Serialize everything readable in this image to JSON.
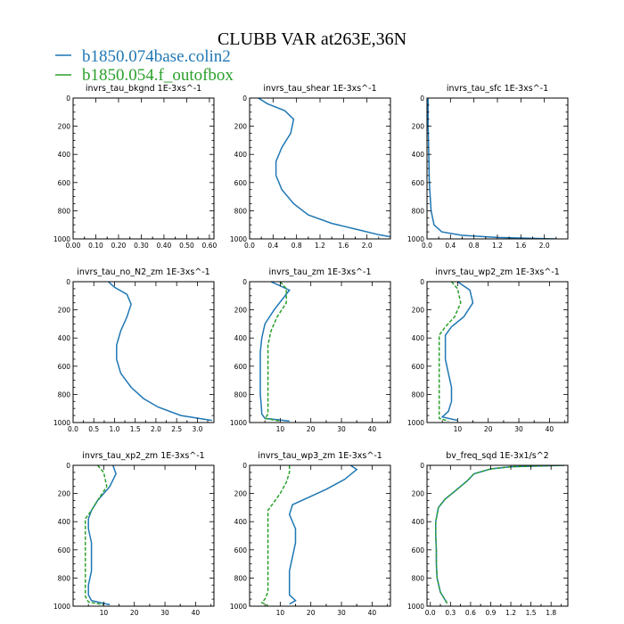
{
  "figure": {
    "title": "CLUBB VAR at263E,36N",
    "legend": [
      {
        "label": "b1850.074base.colin2",
        "color": "#1f77b4"
      },
      {
        "label": "b1850.054.f_outofbox",
        "color": "#2ca02c"
      }
    ]
  },
  "chart_data": [
    {
      "type": "line",
      "title": "invrs_tau_bkgnd   1E-3xs^-1",
      "xlim": [
        0,
        0.62
      ],
      "ylim": [
        1000,
        0
      ],
      "xticks": [
        "0.00",
        "0.10",
        "0.20",
        "0.30",
        "0.40",
        "0.50",
        "0.60"
      ],
      "xtick_values": [
        0,
        0.1,
        0.2,
        0.3,
        0.4,
        0.5,
        0.6
      ],
      "yticks": [
        "0",
        "200",
        "400",
        "600",
        "800",
        "1000"
      ],
      "series": []
    },
    {
      "type": "line",
      "title": "invrs_tau_shear   1E-3xs^-1",
      "xlim": [
        0,
        2.4
      ],
      "ylim": [
        1000,
        0
      ],
      "xticks": [
        "0.0",
        "0.4",
        "0.8",
        "1.2",
        "1.6",
        "2.0"
      ],
      "xtick_values": [
        0,
        0.4,
        0.8,
        1.2,
        1.6,
        2.0
      ],
      "yticks": [
        "0",
        "200",
        "400",
        "600",
        "800",
        "1000"
      ],
      "series": [
        {
          "color": "#1f77b4",
          "x": [
            0.15,
            0.3,
            0.6,
            0.75,
            0.7,
            0.55,
            0.45,
            0.45,
            0.55,
            0.75,
            1.0,
            1.4,
            1.9,
            2.2,
            2.4
          ],
          "y": [
            0,
            40,
            90,
            150,
            250,
            350,
            450,
            550,
            650,
            750,
            830,
            890,
            940,
            970,
            985
          ]
        }
      ]
    },
    {
      "type": "line",
      "title": "invrs_tau_sfc   1E-3xs^-1",
      "xlim": [
        0,
        2.4
      ],
      "ylim": [
        1000,
        0
      ],
      "xticks": [
        "0.0",
        "0.4",
        "0.8",
        "1.2",
        "1.6",
        "2.0"
      ],
      "xtick_values": [
        0,
        0.4,
        0.8,
        1.2,
        1.6,
        2.0
      ],
      "yticks": [
        "0",
        "200",
        "400",
        "600",
        "800",
        "1000"
      ],
      "series": [
        {
          "color": "#1f77b4",
          "x": [
            0.02,
            0.02,
            0.03,
            0.04,
            0.07,
            0.12,
            0.25,
            0.6,
            1.2,
            2.2
          ],
          "y": [
            0,
            200,
            400,
            600,
            800,
            900,
            950,
            975,
            990,
            1000
          ]
        }
      ]
    },
    {
      "type": "line",
      "title": "invrs_tau_no_N2_zm   1E-3xs^-1",
      "xlim": [
        0,
        3.4
      ],
      "ylim": [
        1000,
        0
      ],
      "xticks": [
        "0.0",
        "0.5",
        "1.0",
        "1.5",
        "2.0",
        "2.5",
        "3.0"
      ],
      "xtick_values": [
        0,
        0.5,
        1,
        1.5,
        2,
        2.5,
        3
      ],
      "yticks": [
        "0",
        "200",
        "400",
        "600",
        "800",
        "1000"
      ],
      "series": [
        {
          "color": "#1f77b4",
          "x": [
            0.85,
            1.0,
            1.3,
            1.4,
            1.3,
            1.15,
            1.05,
            1.05,
            1.15,
            1.4,
            1.7,
            2.05,
            2.6,
            3.35
          ],
          "y": [
            0,
            40,
            90,
            160,
            250,
            350,
            450,
            550,
            650,
            750,
            830,
            890,
            950,
            985
          ]
        }
      ]
    },
    {
      "type": "line",
      "title": "invrs_tau_zm   1E-3xs^-1",
      "xlim": [
        0,
        46
      ],
      "ylim": [
        1000,
        0
      ],
      "xticks": [
        "10",
        "20",
        "30",
        "40"
      ],
      "xtick_values": [
        10,
        20,
        30,
        40
      ],
      "yticks": [
        "0",
        "200",
        "400",
        "600",
        "800",
        "1000"
      ],
      "series": [
        {
          "color": "#1f77b4",
          "x": [
            7,
            13,
            8,
            5,
            4,
            3.5,
            3.5,
            3.5,
            3.5,
            3.8,
            4,
            5,
            13
          ],
          "y": [
            0,
            60,
            200,
            300,
            400,
            500,
            600,
            700,
            800,
            880,
            940,
            970,
            990
          ]
        },
        {
          "color": "#2ca02c",
          "dash": "4 2",
          "x": [
            10,
            12,
            12,
            9,
            7,
            6,
            6,
            6,
            6,
            6,
            6,
            5,
            10
          ],
          "y": [
            0,
            50,
            150,
            250,
            350,
            450,
            550,
            650,
            750,
            850,
            940,
            970,
            990
          ]
        }
      ]
    },
    {
      "type": "line",
      "title": "invrs_tau_wp2_zm   1E-3xs^-1",
      "xlim": [
        0,
        46
      ],
      "ylim": [
        1000,
        0
      ],
      "xticks": [
        "10",
        "20",
        "30",
        "40"
      ],
      "xtick_values": [
        10,
        20,
        30,
        40
      ],
      "yticks": [
        "0",
        "200",
        "400",
        "600",
        "800",
        "1000"
      ],
      "series": [
        {
          "color": "#1f77b4",
          "x": [
            10,
            14,
            15,
            12,
            8,
            6,
            6,
            6,
            7,
            8,
            8,
            7,
            5,
            10
          ],
          "y": [
            0,
            60,
            150,
            250,
            320,
            380,
            450,
            550,
            650,
            750,
            850,
            920,
            960,
            985
          ]
        },
        {
          "color": "#2ca02c",
          "dash": "4 2",
          "x": [
            8,
            10,
            11,
            9,
            6,
            4,
            4,
            4,
            4,
            4,
            4,
            4,
            4,
            7
          ],
          "y": [
            0,
            50,
            150,
            250,
            320,
            380,
            450,
            550,
            650,
            750,
            850,
            930,
            970,
            990
          ]
        }
      ]
    },
    {
      "type": "line",
      "title": "invrs_tau_xp2_zm   1E-3xs^-1",
      "xlim": [
        0,
        46
      ],
      "ylim": [
        1000,
        0
      ],
      "xticks": [
        "10",
        "20",
        "30",
        "40"
      ],
      "xtick_values": [
        10,
        20,
        30,
        40
      ],
      "yticks": [
        "0",
        "200",
        "400",
        "600",
        "800",
        "1000"
      ],
      "series": [
        {
          "color": "#1f77b4",
          "x": [
            13,
            14,
            12,
            8,
            6,
            5,
            5,
            6,
            6,
            6,
            5,
            5,
            6,
            12
          ],
          "y": [
            0,
            60,
            150,
            250,
            320,
            380,
            450,
            550,
            650,
            750,
            850,
            920,
            960,
            990
          ]
        },
        {
          "color": "#2ca02c",
          "dash": "4 2",
          "x": [
            8,
            10,
            11,
            8,
            6,
            4,
            4,
            4,
            4,
            4,
            4,
            4,
            5,
            10
          ],
          "y": [
            0,
            50,
            150,
            250,
            320,
            380,
            450,
            550,
            650,
            750,
            850,
            930,
            970,
            990
          ]
        }
      ]
    },
    {
      "type": "line",
      "title": "invrs_tau_wp3_zm   1E-3xs^-1",
      "xlim": [
        0,
        46
      ],
      "ylim": [
        1000,
        0
      ],
      "xticks": [
        "10",
        "20",
        "30",
        "40"
      ],
      "xtick_values": [
        10,
        20,
        30,
        40
      ],
      "yticks": [
        "0",
        "200",
        "400",
        "600",
        "800",
        "1000"
      ],
      "series": [
        {
          "color": "#1f77b4",
          "x": [
            33,
            35,
            31,
            25,
            20,
            14,
            13,
            15,
            15,
            14,
            13,
            13,
            13,
            15,
            13
          ],
          "y": [
            0,
            30,
            100,
            170,
            220,
            280,
            350,
            450,
            550,
            650,
            750,
            850,
            920,
            960,
            985
          ]
        },
        {
          "color": "#2ca02c",
          "dash": "4 2",
          "x": [
            13,
            13,
            12,
            10,
            8,
            6,
            6,
            6,
            6,
            6,
            6,
            6,
            5,
            4,
            6
          ],
          "y": [
            0,
            50,
            120,
            200,
            260,
            320,
            400,
            500,
            600,
            700,
            800,
            900,
            950,
            975,
            995
          ]
        }
      ]
    },
    {
      "type": "line",
      "title": "bv_freq_sqd   1E-3x1/s^2",
      "xlim": [
        -0.05,
        2.05
      ],
      "ylim": [
        1000,
        0
      ],
      "xticks": [
        "0.0",
        "0.3",
        "0.6",
        "0.9",
        "1.2",
        "1.5",
        "1.8"
      ],
      "xtick_values": [
        0,
        0.3,
        0.6,
        0.9,
        1.2,
        1.5,
        1.8
      ],
      "yticks": [
        "0",
        "200",
        "400",
        "600",
        "800",
        "1000"
      ],
      "series": [
        {
          "color": "#1f77b4",
          "x": [
            2.0,
            1.2,
            0.9,
            0.65,
            0.55,
            0.45,
            0.35,
            0.22,
            0.12,
            0.08,
            0.08,
            0.09,
            0.09,
            0.1,
            0.15,
            0.25
          ],
          "y": [
            0,
            10,
            25,
            60,
            110,
            150,
            190,
            240,
            300,
            400,
            500,
            600,
            700,
            800,
            900,
            980
          ]
        },
        {
          "color": "#2ca02c",
          "dash": "4 2",
          "x": [
            2.0,
            1.2,
            0.9,
            0.65,
            0.55,
            0.45,
            0.35,
            0.22,
            0.12,
            0.08,
            0.08,
            0.09,
            0.09,
            0.1,
            0.15,
            0.25
          ],
          "y": [
            0,
            10,
            25,
            60,
            110,
            150,
            190,
            240,
            300,
            400,
            500,
            600,
            700,
            800,
            900,
            980
          ]
        }
      ]
    }
  ]
}
